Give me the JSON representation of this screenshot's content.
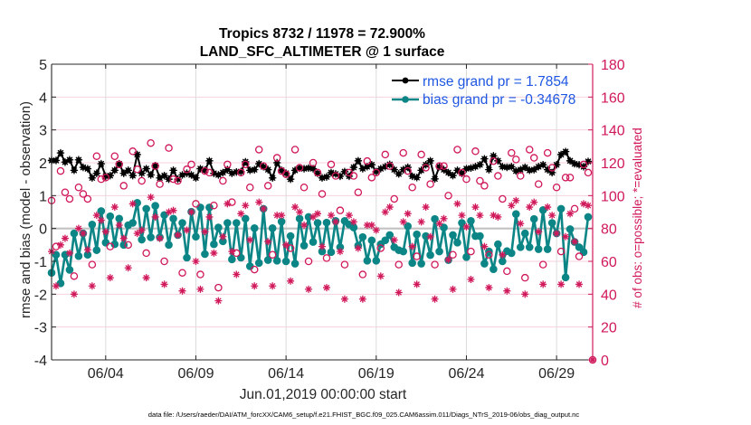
{
  "chart_data": {
    "type": "line",
    "title": "Tropics 8732 / 11978 = 72.900%",
    "subtitle": "LAND_SFC_ALTIMETER @ 1 surface",
    "xlabel": "Jun.01,2019 00:00:00 start",
    "ylabel": "rmse and bias (model - observation)",
    "ylabel_right": "# of obs: o=possible; *=evaluated",
    "x_units": "days since Jun.01,2019 00:00:00",
    "x_start": 0,
    "x_step": 0.25,
    "xlim": [
      0,
      30
    ],
    "xticks": [
      3,
      8,
      13,
      18,
      23,
      28
    ],
    "xtick_labels": [
      "06/04",
      "06/09",
      "06/14",
      "06/19",
      "06/24",
      "06/29"
    ],
    "ylim": [
      -4,
      5
    ],
    "yticks": [
      -4,
      -3,
      -2,
      -1,
      0,
      1,
      2,
      3,
      4,
      5
    ],
    "ytick_labels": [
      "-4",
      "-3",
      "-2",
      "-1",
      "0",
      "1",
      "2",
      "3",
      "4",
      "5"
    ],
    "ylim_right": [
      0,
      180
    ],
    "yticks_right": [
      0,
      20,
      40,
      60,
      80,
      100,
      120,
      140,
      160,
      180
    ],
    "ytick_labels_right": [
      "0",
      "20",
      "40",
      "60",
      "80",
      "100",
      "120",
      "140",
      "160",
      "180"
    ],
    "grid": true,
    "zero_line": true,
    "right_axis_color": "#d0185a",
    "legend_text_color": "#1f57e3",
    "legend": {
      "placement": "top-right",
      "entries": [
        {
          "label": "rmse grand pr = 1.7854",
          "series": "rmse"
        },
        {
          "label": "bias grand pr = -0.34678",
          "series": "bias"
        }
      ]
    },
    "series": [
      {
        "name": "rmse",
        "axis": "left",
        "color": "#000000",
        "line": true,
        "marker": "filled-circle-star",
        "values": [
          2.07,
          2.07,
          2.3,
          2.02,
          2.09,
          1.77,
          2.09,
          1.86,
          1.82,
          1.54,
          1.68,
          1.97,
          1.59,
          1.61,
          1.77,
          1.97,
          1.68,
          1.77,
          1.61,
          2.25,
          1.68,
          1.82,
          1.63,
          1.91,
          1.54,
          1.61,
          1.5,
          1.77,
          1.5,
          1.63,
          1.68,
          1.63,
          1.54,
          1.82,
          1.77,
          2.06,
          1.68,
          1.63,
          1.7,
          1.79,
          1.68,
          1.72,
          1.73,
          2.03,
          1.77,
          1.79,
          1.97,
          1.88,
          1.79,
          1.54,
          2.0,
          1.77,
          1.68,
          1.5,
          1.77,
          1.84,
          1.82,
          1.84,
          1.82,
          1.68,
          1.54,
          1.57,
          1.7,
          1.66,
          1.59,
          1.73,
          1.59,
          1.86,
          2.06,
          1.82,
          1.88,
          1.94,
          1.73,
          1.82,
          1.88,
          1.95,
          1.79,
          1.66,
          1.79,
          1.86,
          1.59,
          1.55,
          1.77,
          1.94,
          2.06,
          1.51,
          1.88,
          1.79,
          1.7,
          1.61,
          1.77,
          1.68,
          1.82,
          1.84,
          1.88,
          1.94,
          2.12,
          1.79,
          2.21,
          2.06,
          1.88,
          1.86,
          1.88,
          1.75,
          1.79,
          1.86,
          1.77,
          1.79,
          1.88,
          1.94,
          1.79,
          1.7,
          1.94,
          2.25,
          2.34,
          2.06,
          1.97,
          1.94,
          1.88,
          2.04
        ]
      },
      {
        "name": "bias",
        "axis": "left",
        "color": "#0b8585",
        "line": true,
        "marker": "filled-circle",
        "values": [
          -1.35,
          -0.8,
          -1.67,
          -0.8,
          -1.26,
          -0.15,
          -0.84,
          -0.15,
          -0.8,
          0.12,
          -0.66,
          0.53,
          -0.43,
          0.37,
          -0.48,
          0.3,
          -0.5,
          0.1,
          0.17,
          0.78,
          -0.34,
          0.6,
          -0.27,
          0.69,
          -0.27,
          0.41,
          -0.5,
          0.3,
          -0.2,
          0.17,
          -0.89,
          0.51,
          -0.25,
          0.64,
          -0.78,
          0.64,
          -0.48,
          0.03,
          -0.39,
          0.17,
          -0.94,
          0.17,
          -0.89,
          0.3,
          -1.15,
          0.01,
          -1.05,
          0.6,
          -0.96,
          0.01,
          -0.98,
          0.21,
          -1.0,
          -0.23,
          -1.07,
          0.3,
          -0.52,
          0.35,
          -0.41,
          0.17,
          -0.7,
          0.18,
          -0.72,
          0.23,
          -0.57,
          0.23,
          0.12,
          0.03,
          -0.52,
          -0.26,
          -0.98,
          -0.36,
          -0.98,
          -0.48,
          -0.36,
          -0.2,
          -0.57,
          -0.66,
          -0.7,
          0.07,
          -1.05,
          -0.18,
          -1.07,
          -0.23,
          -0.81,
          0.29,
          -0.7,
          0.03,
          -0.96,
          -0.2,
          -0.43,
          0.17,
          -0.87,
          0.23,
          -0.23,
          -0.23,
          -1.07,
          -0.7,
          -1.24,
          -0.48,
          -1.0,
          -0.69,
          -0.75,
          0.44,
          -0.57,
          -0.15,
          -0.57,
          0.29,
          -0.63,
          0.56,
          -0.63,
          0.17,
          -0.15,
          0.6,
          -1.49,
          -0.02,
          -0.41,
          -0.57,
          -0.72,
          0.35
        ]
      },
      {
        "name": "possible",
        "axis": "right",
        "color": "#d0185a",
        "line": false,
        "marker": "o",
        "values": [
          97,
          69,
          115,
          102,
          98,
          51,
          105,
          101,
          98,
          58,
          124,
          110,
          111,
          69,
          124,
          119,
          106,
          70,
          127,
          116,
          109,
          65,
          132,
          118,
          107,
          60,
          129,
          110,
          109,
          53,
          116,
          119,
          95,
          52,
          115,
          114,
          94,
          44,
          109,
          119,
          96,
          65,
          114,
          119,
          105,
          55,
          128,
          118,
          106,
          64,
          123,
          115,
          113,
          68,
          128,
          117,
          105,
          60,
          120,
          114,
          101,
          62,
          119,
          112,
          91,
          58,
          114,
          112,
          102,
          52,
          121,
          111,
          114,
          68,
          125,
          118,
          98,
          58,
          126,
          115,
          105,
          63,
          125,
          117,
          107,
          58,
          118,
          118,
          100,
          64,
          128,
          114,
          110,
          66,
          127,
          109,
          106,
          64,
          121,
          112,
          98,
          54,
          126,
          122,
          112,
          50,
          128,
          123,
          107,
          58,
          126,
          117,
          105,
          66,
          111,
          111,
          92,
          63,
          119,
          114,
          0
        ]
      },
      {
        "name": "evaluated",
        "axis": "right",
        "color": "#d0185a",
        "line": false,
        "marker": "*",
        "values": [
          66,
          45,
          70,
          74,
          65,
          40,
          80,
          77,
          67,
          45,
          88,
          85,
          78,
          50,
          93,
          82,
          74,
          56,
          95,
          77,
          79,
          50,
          99,
          87,
          74,
          46,
          90,
          91,
          76,
          42,
          79,
          90,
          60,
          43,
          78,
          87,
          65,
          36,
          75,
          95,
          66,
          52,
          89,
          94,
          73,
          45,
          96,
          92,
          72,
          45,
          88,
          88,
          70,
          48,
          93,
          90,
          82,
          43,
          87,
          89,
          69,
          44,
          88,
          84,
          66,
          37,
          88,
          84,
          68,
          37,
          82,
          82,
          79,
          51,
          90,
          93,
          73,
          41,
          84,
          89,
          69,
          46,
          84,
          93,
          75,
          37,
          83,
          86,
          61,
          43,
          95,
          88,
          81,
          49,
          93,
          88,
          69,
          44,
          88,
          87,
          64,
          42,
          94,
          97,
          83,
          40,
          93,
          96,
          78,
          46,
          93,
          88,
          77,
          46,
          75,
          89,
          72,
          46,
          95,
          94,
          0
        ]
      }
    ]
  },
  "footer": {
    "data_file": "data file: /Users/raeder/DAI/ATM_forcXX/CAM6_setup/f.e21.FHIST_BGC.f09_025.CAM6assim.011/Diags_NTrS_2019-06/obs_diag_output.nc"
  }
}
